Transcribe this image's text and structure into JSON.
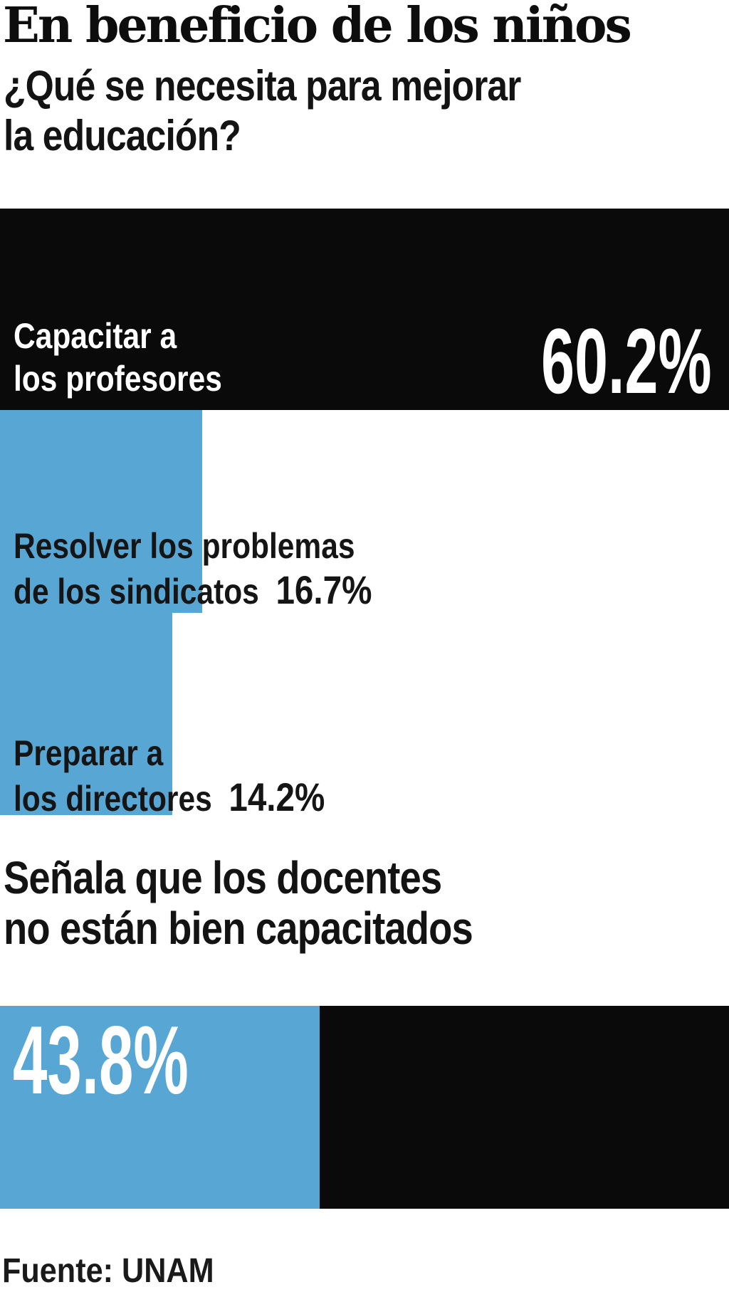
{
  "header": {
    "title": "En beneficio de los niños",
    "question_line1": "¿Qué se necesita para mejorar",
    "question_line2": "la educación?"
  },
  "chart_data": {
    "type": "bar",
    "orientation": "horizontal",
    "unit": "percent",
    "title": "En beneficio de los niños",
    "subtitle": "¿Qué se necesita para mejorar la educación?",
    "scale_max_value": 60.2,
    "grid": false,
    "legend": false,
    "series": [
      {
        "label": "Capacitar a los profesores",
        "label_line1": "Capacitar a",
        "label_line2": "los profesores",
        "value": 60.2,
        "value_label": "60.2%",
        "color": "#0a0a0a"
      },
      {
        "label": "Resolver los problemas de los sindicatos",
        "label_line1": "Resolver los problemas",
        "label_line2": "de los sindicatos",
        "value": 16.7,
        "value_label": "16.7%",
        "color": "#58a6d4"
      },
      {
        "label": "Preparar a los directores",
        "label_line1": "Preparar a",
        "label_line2": "los directores",
        "value": 14.2,
        "value_label": "14.2%",
        "color": "#58a6d4"
      }
    ],
    "secondary_stat": {
      "label": "Señala que los docentes no están bien capacitados",
      "label_line1": "Señala que los docentes",
      "label_line2": "no están bien capacitados",
      "value": 43.8,
      "value_label": "43.8%",
      "remainder_value": 56.2,
      "filled_color": "#58a6d4",
      "remainder_color": "#0a0a0a"
    },
    "source": "Fuente: UNAM"
  },
  "colors": {
    "accent_blue": "#58a6d4",
    "bar_black": "#0a0a0a",
    "text_dark": "#131313",
    "text_on_dark": "#ffffff",
    "background": "#ffffff"
  }
}
